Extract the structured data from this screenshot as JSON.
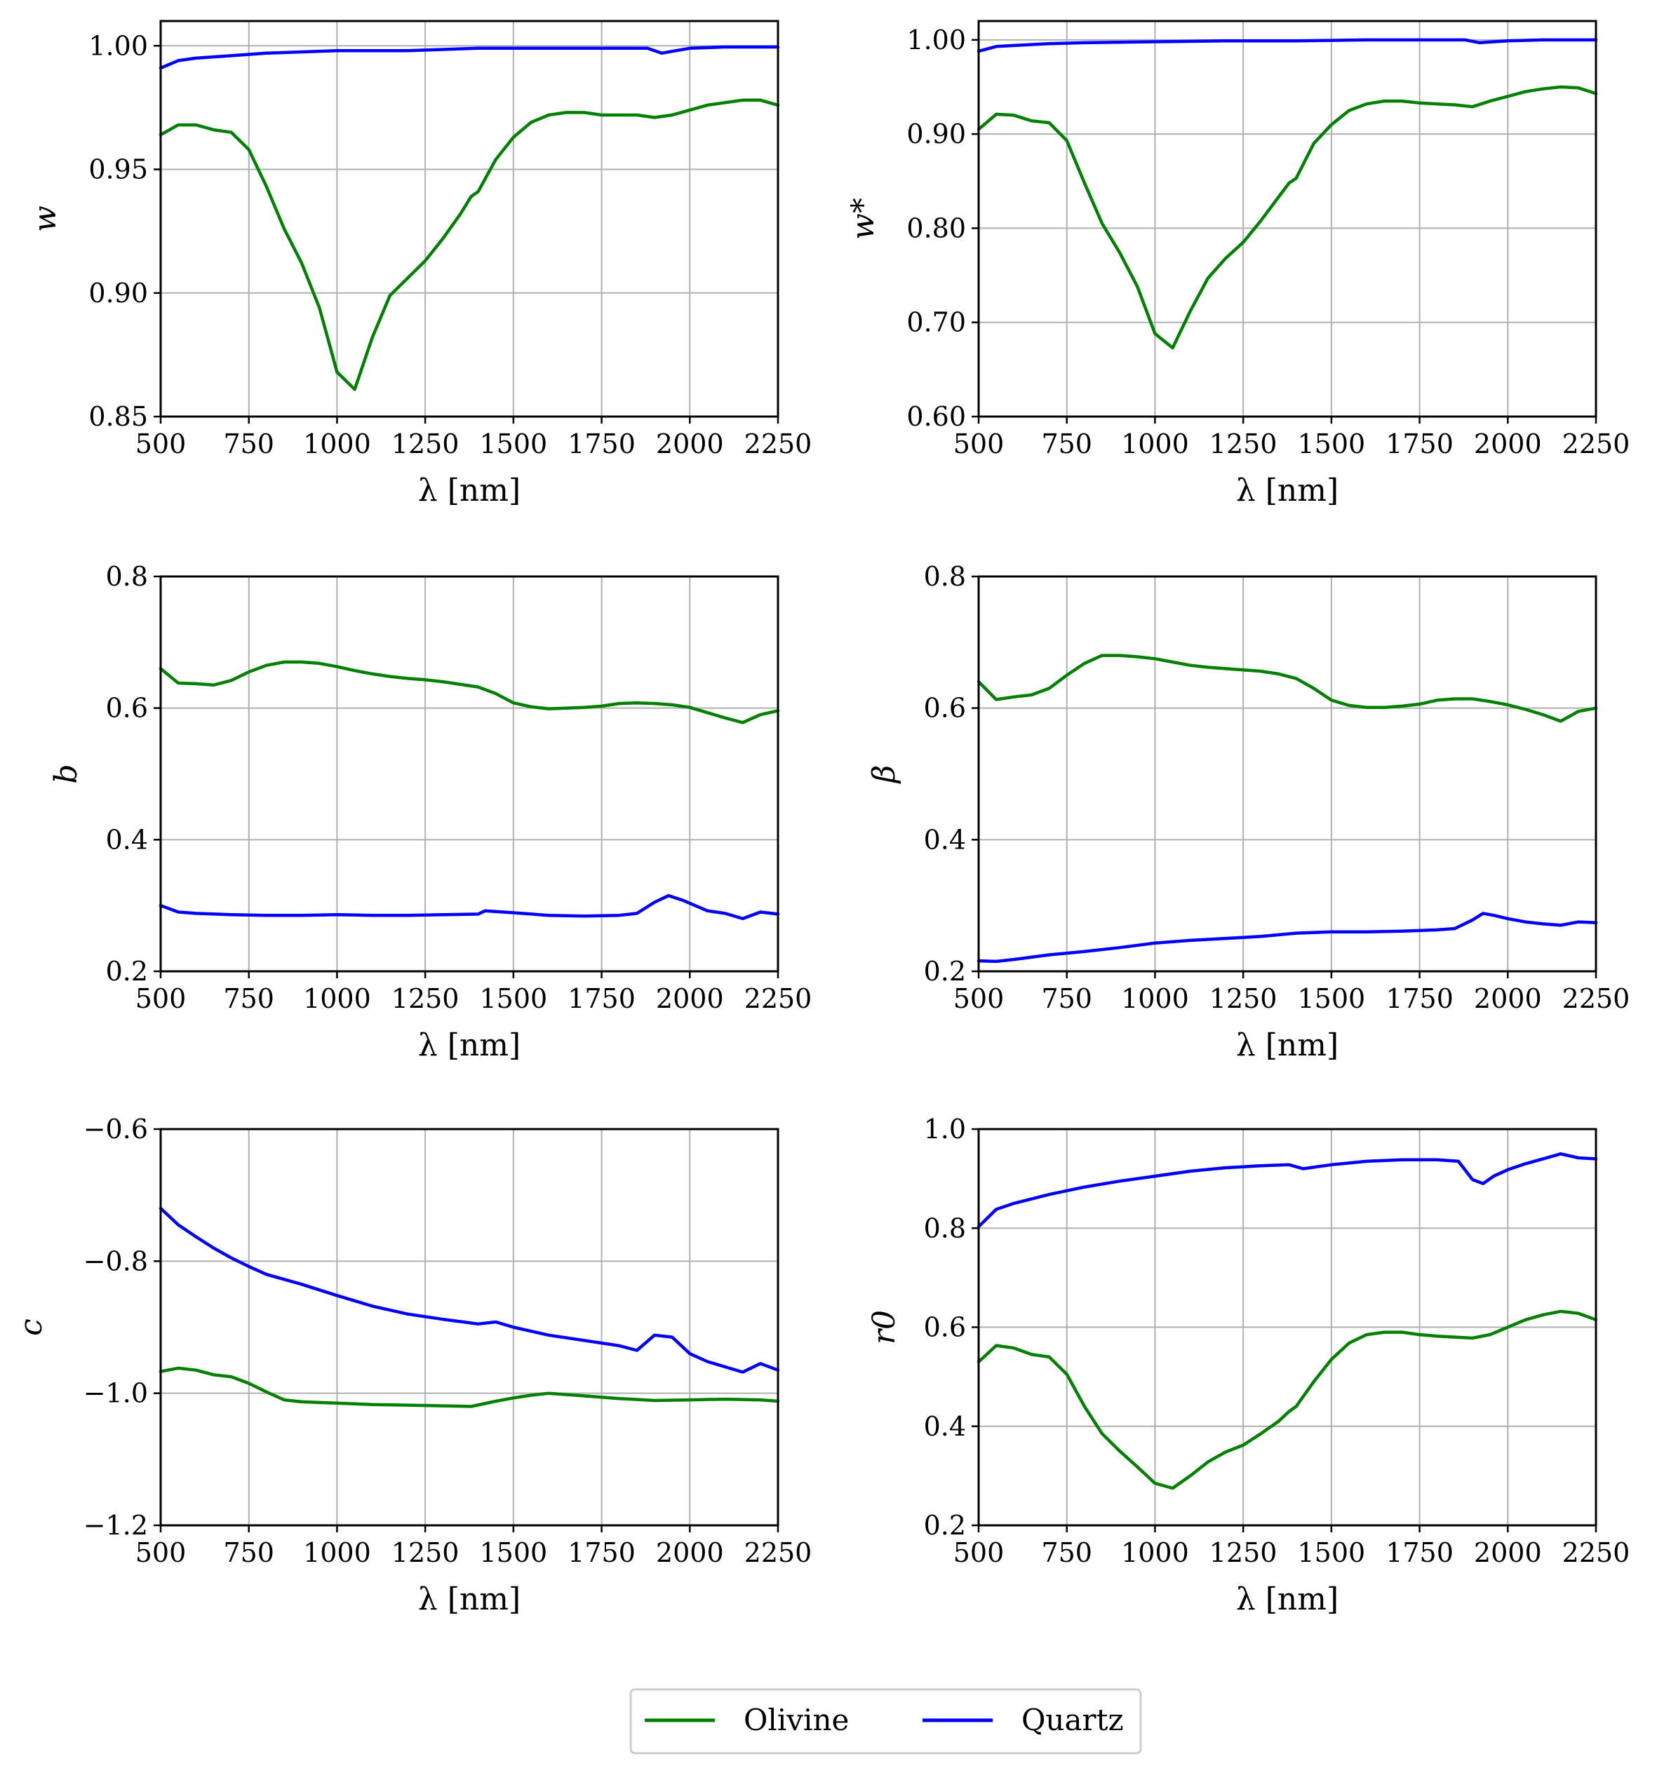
{
  "colors": {
    "olivine": "#008000",
    "quartz": "#0000ff",
    "grid": "#b0b0b0",
    "axes": "#000000"
  },
  "legend": {
    "placement": "bottom-center",
    "entries": [
      "Olivine",
      "Quartz"
    ]
  },
  "chart_data": [
    {
      "type": "line",
      "ylabel": "w",
      "xlabel": "λ [nm]",
      "xlim": [
        500,
        2250
      ],
      "ylim": [
        0.85,
        1.01
      ],
      "xticks": [
        500,
        750,
        1000,
        1250,
        1500,
        1750,
        2000,
        2250
      ],
      "yticks": [
        0.85,
        0.9,
        0.95,
        1.0
      ],
      "ytick_labels": [
        "0.85",
        "0.90",
        "0.95",
        "1.00"
      ],
      "grid": true,
      "series": [
        {
          "name": "Olivine",
          "x": [
            500,
            550,
            600,
            650,
            700,
            750,
            800,
            850,
            900,
            950,
            1000,
            1050,
            1100,
            1150,
            1200,
            1250,
            1300,
            1350,
            1380,
            1400,
            1450,
            1500,
            1550,
            1600,
            1650,
            1700,
            1750,
            1800,
            1850,
            1900,
            1950,
            2000,
            2050,
            2100,
            2150,
            2200,
            2250
          ],
          "y": [
            0.964,
            0.968,
            0.968,
            0.966,
            0.965,
            0.958,
            0.943,
            0.926,
            0.912,
            0.894,
            0.868,
            0.861,
            0.882,
            0.899,
            0.906,
            0.913,
            0.922,
            0.932,
            0.939,
            0.941,
            0.954,
            0.963,
            0.969,
            0.972,
            0.973,
            0.973,
            0.972,
            0.972,
            0.972,
            0.971,
            0.972,
            0.974,
            0.976,
            0.977,
            0.978,
            0.978,
            0.976
          ]
        },
        {
          "name": "Quartz",
          "x": [
            500,
            550,
            600,
            700,
            800,
            1000,
            1200,
            1400,
            1600,
            1800,
            1880,
            1920,
            1960,
            2000,
            2100,
            2200,
            2250
          ],
          "y": [
            0.991,
            0.994,
            0.995,
            0.996,
            0.997,
            0.998,
            0.998,
            0.999,
            0.999,
            0.999,
            0.999,
            0.997,
            0.998,
            0.999,
            0.9995,
            0.9995,
            0.9995
          ]
        }
      ]
    },
    {
      "type": "line",
      "ylabel": "w*",
      "xlabel": "λ [nm]",
      "xlim": [
        500,
        2250
      ],
      "ylim": [
        0.6,
        1.02
      ],
      "xticks": [
        500,
        750,
        1000,
        1250,
        1500,
        1750,
        2000,
        2250
      ],
      "yticks": [
        0.6,
        0.7,
        0.8,
        0.9,
        1.0
      ],
      "ytick_labels": [
        "0.60",
        "0.70",
        "0.80",
        "0.90",
        "1.00"
      ],
      "grid": true,
      "series": [
        {
          "name": "Olivine",
          "x": [
            500,
            550,
            600,
            650,
            700,
            750,
            800,
            850,
            900,
            950,
            1000,
            1050,
            1100,
            1150,
            1200,
            1250,
            1300,
            1350,
            1380,
            1400,
            1450,
            1500,
            1550,
            1600,
            1650,
            1700,
            1750,
            1800,
            1850,
            1900,
            1950,
            2000,
            2050,
            2100,
            2150,
            2200,
            2250
          ],
          "y": [
            0.905,
            0.921,
            0.92,
            0.914,
            0.912,
            0.893,
            0.848,
            0.805,
            0.774,
            0.738,
            0.688,
            0.673,
            0.712,
            0.747,
            0.768,
            0.785,
            0.808,
            0.833,
            0.848,
            0.853,
            0.89,
            0.91,
            0.925,
            0.932,
            0.935,
            0.935,
            0.933,
            0.932,
            0.931,
            0.929,
            0.935,
            0.94,
            0.945,
            0.948,
            0.95,
            0.949,
            0.943
          ]
        },
        {
          "name": "Quartz",
          "x": [
            500,
            550,
            600,
            700,
            800,
            1000,
            1200,
            1400,
            1600,
            1800,
            1880,
            1920,
            1960,
            2000,
            2100,
            2200,
            2250
          ],
          "y": [
            0.988,
            0.993,
            0.994,
            0.996,
            0.997,
            0.998,
            0.999,
            0.999,
            1.0,
            1.0,
            1.0,
            0.997,
            0.998,
            0.999,
            1.0,
            1.0,
            1.0
          ]
        }
      ]
    },
    {
      "type": "line",
      "ylabel": "b",
      "xlabel": "λ [nm]",
      "xlim": [
        500,
        2250
      ],
      "ylim": [
        0.2,
        0.8
      ],
      "xticks": [
        500,
        750,
        1000,
        1250,
        1500,
        1750,
        2000,
        2250
      ],
      "yticks": [
        0.2,
        0.4,
        0.6,
        0.8
      ],
      "ytick_labels": [
        "0.2",
        "0.4",
        "0.6",
        "0.8"
      ],
      "grid": true,
      "series": [
        {
          "name": "Olivine",
          "x": [
            500,
            550,
            600,
            650,
            700,
            750,
            800,
            850,
            900,
            950,
            1000,
            1050,
            1100,
            1150,
            1200,
            1250,
            1300,
            1350,
            1400,
            1450,
            1500,
            1550,
            1600,
            1650,
            1700,
            1750,
            1800,
            1850,
            1900,
            1950,
            2000,
            2050,
            2100,
            2150,
            2200,
            2250
          ],
          "y": [
            0.66,
            0.638,
            0.637,
            0.635,
            0.642,
            0.655,
            0.665,
            0.67,
            0.67,
            0.668,
            0.663,
            0.657,
            0.652,
            0.648,
            0.645,
            0.643,
            0.64,
            0.636,
            0.632,
            0.622,
            0.608,
            0.602,
            0.599,
            0.6,
            0.601,
            0.603,
            0.607,
            0.608,
            0.607,
            0.605,
            0.601,
            0.593,
            0.585,
            0.578,
            0.59,
            0.596
          ]
        },
        {
          "name": "Quartz",
          "x": [
            500,
            550,
            600,
            700,
            800,
            900,
            1000,
            1100,
            1200,
            1300,
            1400,
            1420,
            1500,
            1600,
            1700,
            1800,
            1850,
            1900,
            1940,
            1980,
            2050,
            2100,
            2150,
            2200,
            2250
          ],
          "y": [
            0.3,
            0.29,
            0.288,
            0.286,
            0.285,
            0.285,
            0.286,
            0.285,
            0.285,
            0.286,
            0.287,
            0.292,
            0.289,
            0.285,
            0.284,
            0.285,
            0.288,
            0.305,
            0.315,
            0.308,
            0.292,
            0.288,
            0.28,
            0.29,
            0.287
          ]
        }
      ]
    },
    {
      "type": "line",
      "ylabel": "β",
      "xlabel": "λ [nm]",
      "xlim": [
        500,
        2250
      ],
      "ylim": [
        0.2,
        0.8
      ],
      "xticks": [
        500,
        750,
        1000,
        1250,
        1500,
        1750,
        2000,
        2250
      ],
      "yticks": [
        0.2,
        0.4,
        0.6,
        0.8
      ],
      "ytick_labels": [
        "0.2",
        "0.4",
        "0.6",
        "0.8"
      ],
      "grid": true,
      "series": [
        {
          "name": "Olivine",
          "x": [
            500,
            550,
            600,
            650,
            700,
            750,
            800,
            850,
            900,
            950,
            1000,
            1050,
            1100,
            1150,
            1200,
            1250,
            1300,
            1350,
            1400,
            1450,
            1500,
            1550,
            1600,
            1650,
            1700,
            1750,
            1800,
            1850,
            1900,
            1950,
            2000,
            2050,
            2100,
            2150,
            2200,
            2250
          ],
          "y": [
            0.64,
            0.613,
            0.617,
            0.62,
            0.63,
            0.65,
            0.668,
            0.68,
            0.68,
            0.678,
            0.675,
            0.67,
            0.665,
            0.662,
            0.66,
            0.658,
            0.656,
            0.652,
            0.645,
            0.63,
            0.612,
            0.604,
            0.601,
            0.601,
            0.603,
            0.606,
            0.612,
            0.614,
            0.614,
            0.61,
            0.605,
            0.598,
            0.59,
            0.58,
            0.595,
            0.6
          ]
        },
        {
          "name": "Quartz",
          "x": [
            500,
            550,
            600,
            700,
            800,
            900,
            1000,
            1100,
            1200,
            1300,
            1400,
            1500,
            1600,
            1700,
            1800,
            1850,
            1900,
            1930,
            1960,
            2000,
            2050,
            2100,
            2150,
            2200,
            2250
          ],
          "y": [
            0.216,
            0.215,
            0.218,
            0.225,
            0.23,
            0.236,
            0.243,
            0.247,
            0.25,
            0.253,
            0.258,
            0.26,
            0.26,
            0.261,
            0.263,
            0.265,
            0.278,
            0.288,
            0.285,
            0.28,
            0.275,
            0.272,
            0.27,
            0.275,
            0.274
          ]
        }
      ]
    },
    {
      "type": "line",
      "ylabel": "c",
      "xlabel": "λ [nm]",
      "xlim": [
        500,
        2250
      ],
      "ylim": [
        -1.2,
        -0.6
      ],
      "xticks": [
        500,
        750,
        1000,
        1250,
        1500,
        1750,
        2000,
        2250
      ],
      "yticks": [
        -1.2,
        -1.0,
        -0.8,
        -0.6
      ],
      "ytick_labels": [
        "−1.2",
        "−1.0",
        "−0.8",
        "−0.6"
      ],
      "grid": true,
      "series": [
        {
          "name": "Olivine",
          "x": [
            500,
            550,
            600,
            650,
            700,
            750,
            800,
            850,
            900,
            1000,
            1100,
            1200,
            1300,
            1380,
            1450,
            1500,
            1550,
            1600,
            1700,
            1800,
            1900,
            2000,
            2100,
            2200,
            2250
          ],
          "y": [
            -0.967,
            -0.962,
            -0.965,
            -0.972,
            -0.975,
            -0.985,
            -0.998,
            -1.01,
            -1.013,
            -1.015,
            -1.017,
            -1.018,
            -1.019,
            -1.02,
            -1.012,
            -1.007,
            -1.003,
            -1.0,
            -1.004,
            -1.008,
            -1.011,
            -1.01,
            -1.009,
            -1.01,
            -1.012
          ]
        },
        {
          "name": "Quartz",
          "x": [
            500,
            550,
            600,
            650,
            700,
            750,
            800,
            900,
            1000,
            1100,
            1200,
            1300,
            1400,
            1450,
            1500,
            1600,
            1700,
            1800,
            1850,
            1900,
            1950,
            2000,
            2050,
            2100,
            2150,
            2200,
            2250
          ],
          "y": [
            -0.72,
            -0.745,
            -0.763,
            -0.78,
            -0.795,
            -0.808,
            -0.82,
            -0.835,
            -0.852,
            -0.868,
            -0.88,
            -0.888,
            -0.895,
            -0.892,
            -0.9,
            -0.912,
            -0.92,
            -0.928,
            -0.935,
            -0.912,
            -0.915,
            -0.94,
            -0.952,
            -0.96,
            -0.968,
            -0.955,
            -0.965
          ]
        }
      ]
    },
    {
      "type": "line",
      "ylabel": "r0",
      "xlabel": "λ [nm]",
      "xlim": [
        500,
        2250
      ],
      "ylim": [
        0.2,
        1.0
      ],
      "xticks": [
        500,
        750,
        1000,
        1250,
        1500,
        1750,
        2000,
        2250
      ],
      "yticks": [
        0.2,
        0.4,
        0.6,
        0.8,
        1.0
      ],
      "ytick_labels": [
        "0.2",
        "0.4",
        "0.6",
        "0.8",
        "1.0"
      ],
      "grid": true,
      "series": [
        {
          "name": "Olivine",
          "x": [
            500,
            550,
            600,
            650,
            700,
            750,
            800,
            850,
            900,
            950,
            1000,
            1050,
            1100,
            1150,
            1200,
            1250,
            1300,
            1350,
            1380,
            1400,
            1450,
            1500,
            1550,
            1600,
            1650,
            1700,
            1750,
            1800,
            1850,
            1900,
            1950,
            2000,
            2050,
            2100,
            2150,
            2200,
            2250
          ],
          "y": [
            0.53,
            0.563,
            0.558,
            0.545,
            0.54,
            0.505,
            0.44,
            0.385,
            0.35,
            0.318,
            0.285,
            0.275,
            0.3,
            0.328,
            0.348,
            0.362,
            0.385,
            0.41,
            0.43,
            0.44,
            0.49,
            0.535,
            0.568,
            0.585,
            0.59,
            0.59,
            0.585,
            0.582,
            0.58,
            0.578,
            0.585,
            0.6,
            0.615,
            0.625,
            0.632,
            0.628,
            0.615
          ]
        },
        {
          "name": "Quartz",
          "x": [
            500,
            550,
            600,
            700,
            800,
            900,
            1000,
            1100,
            1200,
            1300,
            1380,
            1420,
            1500,
            1600,
            1700,
            1800,
            1860,
            1900,
            1930,
            1960,
            2000,
            2050,
            2100,
            2150,
            2200,
            2250
          ],
          "y": [
            0.803,
            0.838,
            0.85,
            0.868,
            0.883,
            0.895,
            0.905,
            0.915,
            0.922,
            0.926,
            0.928,
            0.92,
            0.928,
            0.935,
            0.938,
            0.938,
            0.935,
            0.898,
            0.89,
            0.905,
            0.918,
            0.93,
            0.94,
            0.95,
            0.942,
            0.94
          ]
        }
      ]
    }
  ]
}
